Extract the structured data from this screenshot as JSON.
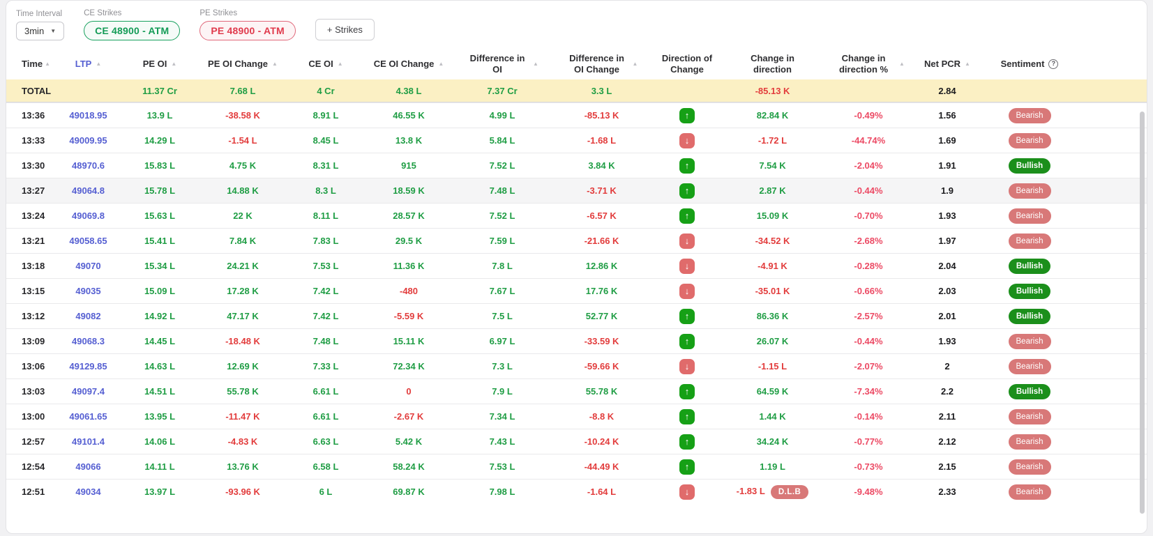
{
  "controls": {
    "time_interval_label": "Time Interval",
    "time_interval_value": "3min",
    "ce_strikes_label": "CE Strikes",
    "ce_strike_chip": "CE 48900 - ATM",
    "pe_strikes_label": "PE Strikes",
    "pe_strike_chip": "PE 48900 - ATM",
    "add_strikes_button": "+ Strikes"
  },
  "colors": {
    "positive_text": "#1f9d44",
    "negative_text": "#e23c3c",
    "percent_negative_text": "#ec4a64",
    "ltp_link": "#555fd2",
    "bullish_pill": "#1b8f1b",
    "bearish_pill": "#d87878",
    "up_icon_bg": "#16a016",
    "down_icon_bg": "#e06b6b",
    "total_row_bg": "#fbf0c4",
    "ce_chip": "#149b57",
    "pe_chip": "#e03b4d"
  },
  "table": {
    "columns": [
      {
        "key": "time",
        "label": "Time",
        "sortable": true
      },
      {
        "key": "ltp",
        "label": "LTP",
        "sortable": true,
        "accent": "ltp"
      },
      {
        "key": "pe_oi",
        "label": "PE OI",
        "sortable": true
      },
      {
        "key": "pe_oi_change",
        "label": "PE OI Change",
        "sortable": true
      },
      {
        "key": "ce_oi",
        "label": "CE OI",
        "sortable": true
      },
      {
        "key": "ce_oi_change",
        "label": "CE OI Change",
        "sortable": true
      },
      {
        "key": "diff_oi",
        "label": "Difference in OI",
        "sortable": true,
        "narrow": true
      },
      {
        "key": "diff_oi_change",
        "label": "Difference in OI Change",
        "sortable": true,
        "narrow": true
      },
      {
        "key": "direction",
        "label": "Direction of Change",
        "sortable": false,
        "narrow": true
      },
      {
        "key": "change_in_direction",
        "label": "Change in direction",
        "sortable": false,
        "narrow": true
      },
      {
        "key": "change_in_direction_pct",
        "label": "Change in direction %",
        "sortable": true,
        "narrow": true
      },
      {
        "key": "net_pcr",
        "label": "Net PCR",
        "sortable": true
      },
      {
        "key": "sentiment",
        "label": "Sentiment",
        "sortable": false,
        "help": true
      }
    ],
    "total_row": {
      "time": "TOTAL",
      "ltp": "",
      "pe_oi": {
        "v": "11.37 Cr",
        "c": "g"
      },
      "pe_oi_change": {
        "v": "7.68 L",
        "c": "g"
      },
      "ce_oi": {
        "v": "4 Cr",
        "c": "g"
      },
      "ce_oi_change": {
        "v": "4.38 L",
        "c": "g"
      },
      "diff_oi": {
        "v": "7.37 Cr",
        "c": "g"
      },
      "diff_oi_change": {
        "v": "3.3 L",
        "c": "g"
      },
      "direction": null,
      "change_in_direction": {
        "v": "-85.13 K",
        "c": "r"
      },
      "change_in_direction_pct": null,
      "net_pcr": "2.84",
      "sentiment": null
    },
    "rows": [
      {
        "time": "13:36",
        "ltp": "49018.95",
        "pe_oi": {
          "v": "13.9 L",
          "c": "g"
        },
        "pe_oi_change": {
          "v": "-38.58 K",
          "c": "r"
        },
        "ce_oi": {
          "v": "8.91 L",
          "c": "g"
        },
        "ce_oi_change": {
          "v": "46.55 K",
          "c": "g"
        },
        "diff_oi": {
          "v": "4.99 L",
          "c": "g"
        },
        "diff_oi_change": {
          "v": "-85.13 K",
          "c": "r"
        },
        "direction": "up",
        "change_in_direction": {
          "v": "82.84 K",
          "c": "g"
        },
        "change_in_direction_pct": {
          "v": "-0.49%",
          "c": "p"
        },
        "net_pcr": "1.56",
        "sentiment": "Bearish",
        "badge": null,
        "highlight": false
      },
      {
        "time": "13:33",
        "ltp": "49009.95",
        "pe_oi": {
          "v": "14.29 L",
          "c": "g"
        },
        "pe_oi_change": {
          "v": "-1.54 L",
          "c": "r"
        },
        "ce_oi": {
          "v": "8.45 L",
          "c": "g"
        },
        "ce_oi_change": {
          "v": "13.8 K",
          "c": "g"
        },
        "diff_oi": {
          "v": "5.84 L",
          "c": "g"
        },
        "diff_oi_change": {
          "v": "-1.68 L",
          "c": "r"
        },
        "direction": "down",
        "change_in_direction": {
          "v": "-1.72 L",
          "c": "r"
        },
        "change_in_direction_pct": {
          "v": "-44.74%",
          "c": "p"
        },
        "net_pcr": "1.69",
        "sentiment": "Bearish",
        "badge": null,
        "highlight": false
      },
      {
        "time": "13:30",
        "ltp": "48970.6",
        "pe_oi": {
          "v": "15.83 L",
          "c": "g"
        },
        "pe_oi_change": {
          "v": "4.75 K",
          "c": "g"
        },
        "ce_oi": {
          "v": "8.31 L",
          "c": "g"
        },
        "ce_oi_change": {
          "v": "915",
          "c": "g"
        },
        "diff_oi": {
          "v": "7.52 L",
          "c": "g"
        },
        "diff_oi_change": {
          "v": "3.84 K",
          "c": "g"
        },
        "direction": "up",
        "change_in_direction": {
          "v": "7.54 K",
          "c": "g"
        },
        "change_in_direction_pct": {
          "v": "-2.04%",
          "c": "p"
        },
        "net_pcr": "1.91",
        "sentiment": "Bullish",
        "badge": null,
        "highlight": false
      },
      {
        "time": "13:27",
        "ltp": "49064.8",
        "pe_oi": {
          "v": "15.78 L",
          "c": "g"
        },
        "pe_oi_change": {
          "v": "14.88 K",
          "c": "g"
        },
        "ce_oi": {
          "v": "8.3 L",
          "c": "g"
        },
        "ce_oi_change": {
          "v": "18.59 K",
          "c": "g"
        },
        "diff_oi": {
          "v": "7.48 L",
          "c": "g"
        },
        "diff_oi_change": {
          "v": "-3.71 K",
          "c": "r"
        },
        "direction": "up",
        "change_in_direction": {
          "v": "2.87 K",
          "c": "g"
        },
        "change_in_direction_pct": {
          "v": "-0.44%",
          "c": "p"
        },
        "net_pcr": "1.9",
        "sentiment": "Bearish",
        "badge": null,
        "highlight": true
      },
      {
        "time": "13:24",
        "ltp": "49069.8",
        "pe_oi": {
          "v": "15.63 L",
          "c": "g"
        },
        "pe_oi_change": {
          "v": "22 K",
          "c": "g"
        },
        "ce_oi": {
          "v": "8.11 L",
          "c": "g"
        },
        "ce_oi_change": {
          "v": "28.57 K",
          "c": "g"
        },
        "diff_oi": {
          "v": "7.52 L",
          "c": "g"
        },
        "diff_oi_change": {
          "v": "-6.57 K",
          "c": "r"
        },
        "direction": "up",
        "change_in_direction": {
          "v": "15.09 K",
          "c": "g"
        },
        "change_in_direction_pct": {
          "v": "-0.70%",
          "c": "p"
        },
        "net_pcr": "1.93",
        "sentiment": "Bearish",
        "badge": null,
        "highlight": false
      },
      {
        "time": "13:21",
        "ltp": "49058.65",
        "pe_oi": {
          "v": "15.41 L",
          "c": "g"
        },
        "pe_oi_change": {
          "v": "7.84 K",
          "c": "g"
        },
        "ce_oi": {
          "v": "7.83 L",
          "c": "g"
        },
        "ce_oi_change": {
          "v": "29.5 K",
          "c": "g"
        },
        "diff_oi": {
          "v": "7.59 L",
          "c": "g"
        },
        "diff_oi_change": {
          "v": "-21.66 K",
          "c": "r"
        },
        "direction": "down",
        "change_in_direction": {
          "v": "-34.52 K",
          "c": "r"
        },
        "change_in_direction_pct": {
          "v": "-2.68%",
          "c": "p"
        },
        "net_pcr": "1.97",
        "sentiment": "Bearish",
        "badge": null,
        "highlight": false
      },
      {
        "time": "13:18",
        "ltp": "49070",
        "pe_oi": {
          "v": "15.34 L",
          "c": "g"
        },
        "pe_oi_change": {
          "v": "24.21 K",
          "c": "g"
        },
        "ce_oi": {
          "v": "7.53 L",
          "c": "g"
        },
        "ce_oi_change": {
          "v": "11.36 K",
          "c": "g"
        },
        "diff_oi": {
          "v": "7.8 L",
          "c": "g"
        },
        "diff_oi_change": {
          "v": "12.86 K",
          "c": "g"
        },
        "direction": "down",
        "change_in_direction": {
          "v": "-4.91 K",
          "c": "r"
        },
        "change_in_direction_pct": {
          "v": "-0.28%",
          "c": "p"
        },
        "net_pcr": "2.04",
        "sentiment": "Bullish",
        "badge": null,
        "highlight": false
      },
      {
        "time": "13:15",
        "ltp": "49035",
        "pe_oi": {
          "v": "15.09 L",
          "c": "g"
        },
        "pe_oi_change": {
          "v": "17.28 K",
          "c": "g"
        },
        "ce_oi": {
          "v": "7.42 L",
          "c": "g"
        },
        "ce_oi_change": {
          "v": "-480",
          "c": "r"
        },
        "diff_oi": {
          "v": "7.67 L",
          "c": "g"
        },
        "diff_oi_change": {
          "v": "17.76 K",
          "c": "g"
        },
        "direction": "down",
        "change_in_direction": {
          "v": "-35.01 K",
          "c": "r"
        },
        "change_in_direction_pct": {
          "v": "-0.66%",
          "c": "p"
        },
        "net_pcr": "2.03",
        "sentiment": "Bullish",
        "badge": null,
        "highlight": false
      },
      {
        "time": "13:12",
        "ltp": "49082",
        "pe_oi": {
          "v": "14.92 L",
          "c": "g"
        },
        "pe_oi_change": {
          "v": "47.17 K",
          "c": "g"
        },
        "ce_oi": {
          "v": "7.42 L",
          "c": "g"
        },
        "ce_oi_change": {
          "v": "-5.59 K",
          "c": "r"
        },
        "diff_oi": {
          "v": "7.5 L",
          "c": "g"
        },
        "diff_oi_change": {
          "v": "52.77 K",
          "c": "g"
        },
        "direction": "up",
        "change_in_direction": {
          "v": "86.36 K",
          "c": "g"
        },
        "change_in_direction_pct": {
          "v": "-2.57%",
          "c": "p"
        },
        "net_pcr": "2.01",
        "sentiment": "Bullish",
        "badge": null,
        "highlight": false
      },
      {
        "time": "13:09",
        "ltp": "49068.3",
        "pe_oi": {
          "v": "14.45 L",
          "c": "g"
        },
        "pe_oi_change": {
          "v": "-18.48 K",
          "c": "r"
        },
        "ce_oi": {
          "v": "7.48 L",
          "c": "g"
        },
        "ce_oi_change": {
          "v": "15.11 K",
          "c": "g"
        },
        "diff_oi": {
          "v": "6.97 L",
          "c": "g"
        },
        "diff_oi_change": {
          "v": "-33.59 K",
          "c": "r"
        },
        "direction": "up",
        "change_in_direction": {
          "v": "26.07 K",
          "c": "g"
        },
        "change_in_direction_pct": {
          "v": "-0.44%",
          "c": "p"
        },
        "net_pcr": "1.93",
        "sentiment": "Bearish",
        "badge": null,
        "highlight": false
      },
      {
        "time": "13:06",
        "ltp": "49129.85",
        "pe_oi": {
          "v": "14.63 L",
          "c": "g"
        },
        "pe_oi_change": {
          "v": "12.69 K",
          "c": "g"
        },
        "ce_oi": {
          "v": "7.33 L",
          "c": "g"
        },
        "ce_oi_change": {
          "v": "72.34 K",
          "c": "g"
        },
        "diff_oi": {
          "v": "7.3 L",
          "c": "g"
        },
        "diff_oi_change": {
          "v": "-59.66 K",
          "c": "r"
        },
        "direction": "down",
        "change_in_direction": {
          "v": "-1.15 L",
          "c": "r"
        },
        "change_in_direction_pct": {
          "v": "-2.07%",
          "c": "p"
        },
        "net_pcr": "2",
        "sentiment": "Bearish",
        "badge": null,
        "highlight": false
      },
      {
        "time": "13:03",
        "ltp": "49097.4",
        "pe_oi": {
          "v": "14.51 L",
          "c": "g"
        },
        "pe_oi_change": {
          "v": "55.78 K",
          "c": "g"
        },
        "ce_oi": {
          "v": "6.61 L",
          "c": "g"
        },
        "ce_oi_change": {
          "v": "0",
          "c": "r"
        },
        "diff_oi": {
          "v": "7.9 L",
          "c": "g"
        },
        "diff_oi_change": {
          "v": "55.78 K",
          "c": "g"
        },
        "direction": "up",
        "change_in_direction": {
          "v": "64.59 K",
          "c": "g"
        },
        "change_in_direction_pct": {
          "v": "-7.34%",
          "c": "p"
        },
        "net_pcr": "2.2",
        "sentiment": "Bullish",
        "badge": null,
        "highlight": false
      },
      {
        "time": "13:00",
        "ltp": "49061.65",
        "pe_oi": {
          "v": "13.95 L",
          "c": "g"
        },
        "pe_oi_change": {
          "v": "-11.47 K",
          "c": "r"
        },
        "ce_oi": {
          "v": "6.61 L",
          "c": "g"
        },
        "ce_oi_change": {
          "v": "-2.67 K",
          "c": "r"
        },
        "diff_oi": {
          "v": "7.34 L",
          "c": "g"
        },
        "diff_oi_change": {
          "v": "-8.8 K",
          "c": "r"
        },
        "direction": "up",
        "change_in_direction": {
          "v": "1.44 K",
          "c": "g"
        },
        "change_in_direction_pct": {
          "v": "-0.14%",
          "c": "p"
        },
        "net_pcr": "2.11",
        "sentiment": "Bearish",
        "badge": null,
        "highlight": false
      },
      {
        "time": "12:57",
        "ltp": "49101.4",
        "pe_oi": {
          "v": "14.06 L",
          "c": "g"
        },
        "pe_oi_change": {
          "v": "-4.83 K",
          "c": "r"
        },
        "ce_oi": {
          "v": "6.63 L",
          "c": "g"
        },
        "ce_oi_change": {
          "v": "5.42 K",
          "c": "g"
        },
        "diff_oi": {
          "v": "7.43 L",
          "c": "g"
        },
        "diff_oi_change": {
          "v": "-10.24 K",
          "c": "r"
        },
        "direction": "up",
        "change_in_direction": {
          "v": "34.24 K",
          "c": "g"
        },
        "change_in_direction_pct": {
          "v": "-0.77%",
          "c": "p"
        },
        "net_pcr": "2.12",
        "sentiment": "Bearish",
        "badge": null,
        "highlight": false
      },
      {
        "time": "12:54",
        "ltp": "49066",
        "pe_oi": {
          "v": "14.11 L",
          "c": "g"
        },
        "pe_oi_change": {
          "v": "13.76 K",
          "c": "g"
        },
        "ce_oi": {
          "v": "6.58 L",
          "c": "g"
        },
        "ce_oi_change": {
          "v": "58.24 K",
          "c": "g"
        },
        "diff_oi": {
          "v": "7.53 L",
          "c": "g"
        },
        "diff_oi_change": {
          "v": "-44.49 K",
          "c": "r"
        },
        "direction": "up",
        "change_in_direction": {
          "v": "1.19 L",
          "c": "g"
        },
        "change_in_direction_pct": {
          "v": "-0.73%",
          "c": "p"
        },
        "net_pcr": "2.15",
        "sentiment": "Bearish",
        "badge": null,
        "highlight": false
      },
      {
        "time": "12:51",
        "ltp": "49034",
        "pe_oi": {
          "v": "13.97 L",
          "c": "g"
        },
        "pe_oi_change": {
          "v": "-93.96 K",
          "c": "r"
        },
        "ce_oi": {
          "v": "6 L",
          "c": "g"
        },
        "ce_oi_change": {
          "v": "69.87 K",
          "c": "g"
        },
        "diff_oi": {
          "v": "7.98 L",
          "c": "g"
        },
        "diff_oi_change": {
          "v": "-1.64 L",
          "c": "r"
        },
        "direction": "down",
        "change_in_direction": {
          "v": "-1.83 L",
          "c": "r"
        },
        "change_in_direction_pct": {
          "v": "-9.48%",
          "c": "p"
        },
        "net_pcr": "2.33",
        "sentiment": "Bearish",
        "badge": "D.L.B",
        "highlight": false
      }
    ]
  }
}
